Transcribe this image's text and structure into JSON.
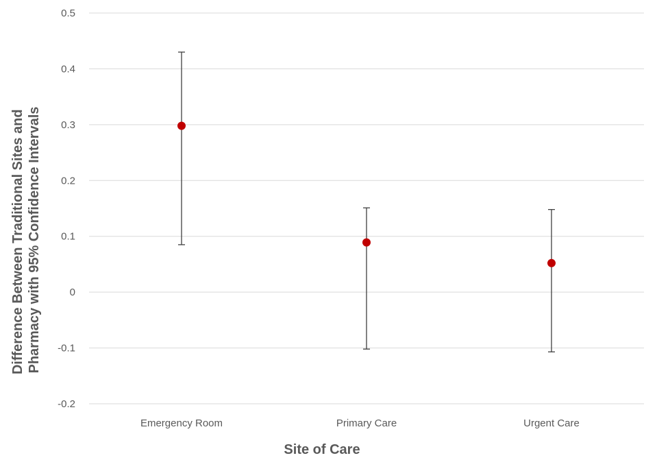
{
  "chart_data": {
    "type": "scatter",
    "title": "",
    "xlabel": "Site of Care",
    "ylabel_lines": [
      "Difference Between Traditional Sites and",
      "Pharmacy with 95% Confidence Intervals"
    ],
    "categories": [
      "Emergency Room",
      "Primary Care",
      "Urgent Care"
    ],
    "series": [
      {
        "values": [
          0.298,
          0.089,
          0.052
        ],
        "ci_lower": [
          0.085,
          -0.102,
          -0.107
        ],
        "ci_upper": [
          0.43,
          0.151,
          0.148
        ]
      }
    ],
    "ylim": [
      -0.2,
      0.5
    ],
    "y_ticks": [
      -0.2,
      -0.1,
      0,
      0.1,
      0.2,
      0.3,
      0.4,
      0.5
    ],
    "y_tick_labels": [
      "-0.2",
      "-0.1",
      "0",
      "0.1",
      "0.2",
      "0.3",
      "0.4",
      "0.5"
    ],
    "grid": true,
    "legend": "none",
    "colors": {
      "point": "#c00000",
      "error_bar": "#404040",
      "grid": "#d9d9d9",
      "text": "#595959"
    }
  }
}
